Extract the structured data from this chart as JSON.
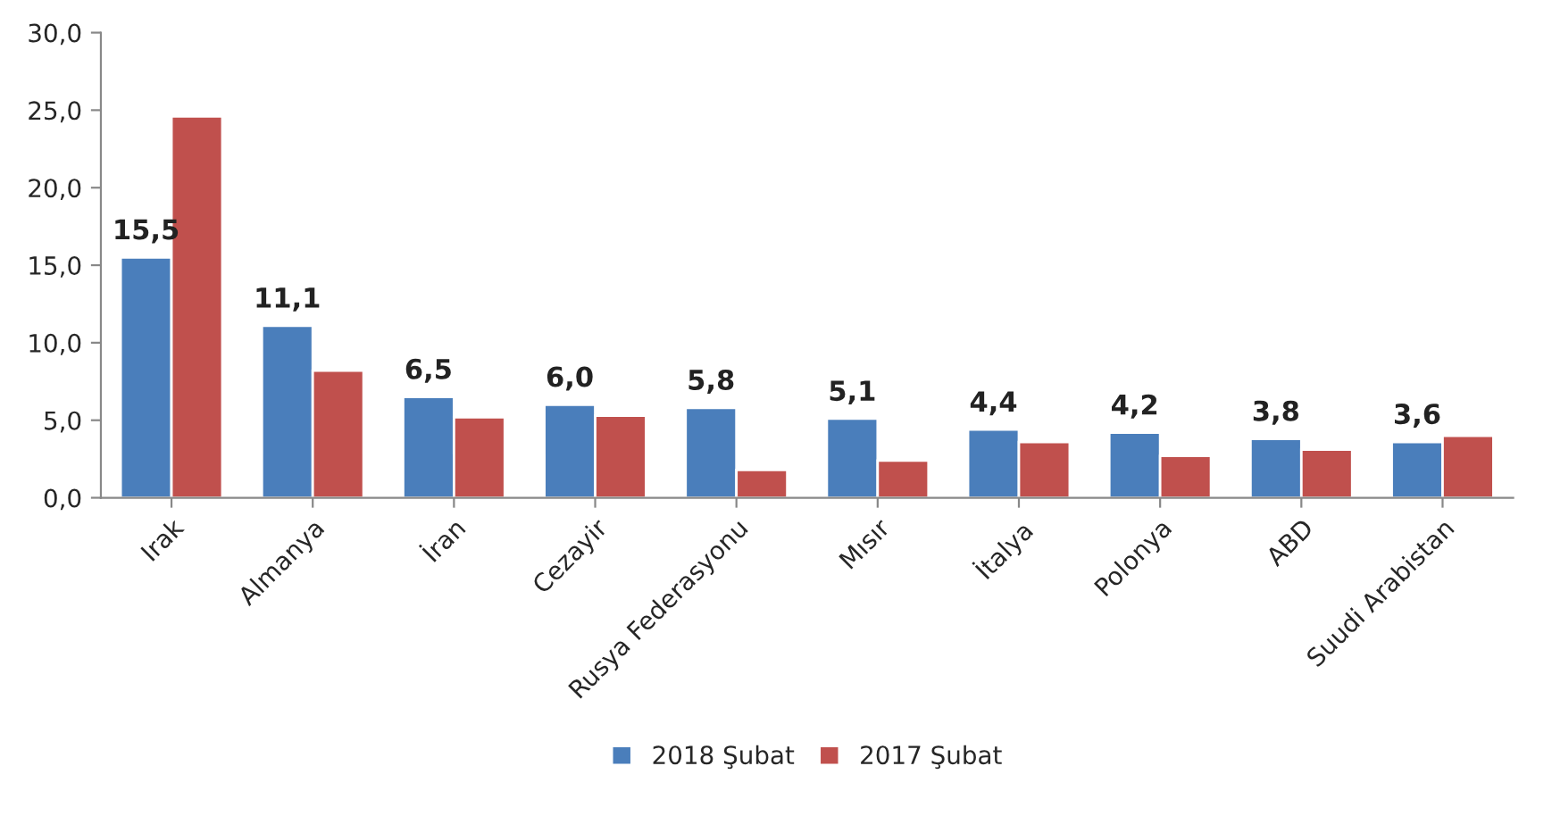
{
  "chart_data": {
    "type": "bar",
    "categories": [
      "Irak",
      "Almanya",
      "İran",
      "Cezayir",
      "Rusya Federasyonu",
      "Mısır",
      "İtalya",
      "Polonya",
      "ABD",
      "Suudi Arabistan"
    ],
    "series": [
      {
        "name": "2018 Şubat",
        "color": "#4a7ebb",
        "values": [
          15.5,
          11.1,
          6.5,
          6.0,
          5.8,
          5.1,
          4.4,
          4.2,
          3.8,
          3.6
        ],
        "value_labels": [
          "15,5",
          "11,1",
          "6,5",
          "6,0",
          "5,8",
          "5,1",
          "4,4",
          "4,2",
          "3,8",
          "3,6"
        ]
      },
      {
        "name": "2017 Şubat",
        "color": "#c0504d",
        "values": [
          24.6,
          8.2,
          5.2,
          5.3,
          1.8,
          2.4,
          3.6,
          2.7,
          3.1,
          4.0
        ]
      }
    ],
    "ylim": [
      0,
      30
    ],
    "yticks": [
      {
        "value": 0,
        "label": "0,0"
      },
      {
        "value": 5,
        "label": "5,0"
      },
      {
        "value": 10,
        "label": "10,0"
      },
      {
        "value": 15,
        "label": "15,0"
      },
      {
        "value": 20,
        "label": "20,0"
      },
      {
        "value": 25,
        "label": "25,0"
      },
      {
        "value": 30,
        "label": "30,0"
      }
    ],
    "grid": false,
    "legend": "bottom"
  }
}
